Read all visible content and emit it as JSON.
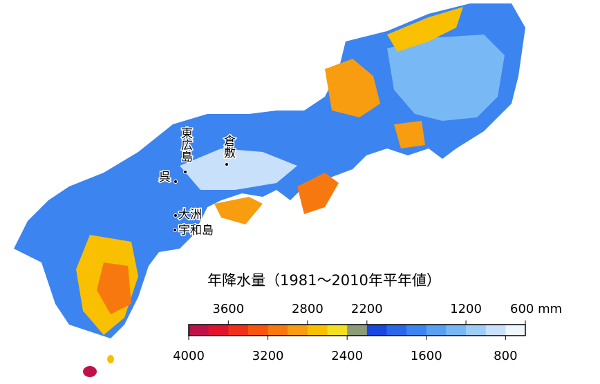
{
  "map": {
    "places": [
      "東広島",
      "倉敷",
      "呉",
      "大洲",
      "宇和島"
    ],
    "colorbar": {
      "title": "年降水量（1981～2010年平年値）",
      "boundaries": [
        4000,
        3800,
        3600,
        3400,
        3200,
        3000,
        2800,
        2600,
        2400,
        2200,
        2000,
        1800,
        1600,
        1400,
        1200,
        1000,
        800,
        600
      ],
      "colors": [
        "#c0104a",
        "#e0142c",
        "#f03018",
        "#f85410",
        "#f87810",
        "#f89c10",
        "#f8c000",
        "#f0e020",
        "#8c9c78",
        "#1848e0",
        "#2868e8",
        "#3c84f0",
        "#58a0f0",
        "#78b8f4",
        "#a0ccf8",
        "#c8e0fa",
        "#eef6ff"
      ],
      "top_ticks": [
        3600,
        2800,
        2200,
        1200,
        {
          "value": 600,
          "label": "600 mm"
        }
      ],
      "bottom_ticks": [
        4000,
        3200,
        2400,
        1600,
        800
      ]
    }
  }
}
